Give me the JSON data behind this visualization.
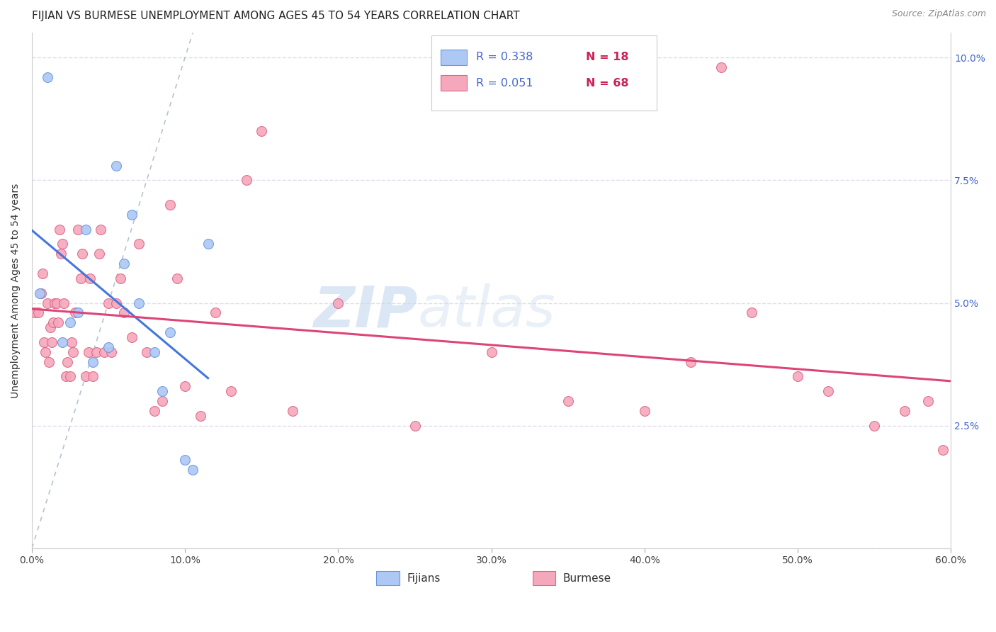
{
  "title": "FIJIAN VS BURMESE UNEMPLOYMENT AMONG AGES 45 TO 54 YEARS CORRELATION CHART",
  "source": "Source: ZipAtlas.com",
  "ylabel": "Unemployment Among Ages 45 to 54 years",
  "xlim": [
    0.0,
    0.6
  ],
  "ylim": [
    0.0,
    0.105
  ],
  "xticks": [
    0.0,
    0.1,
    0.2,
    0.3,
    0.4,
    0.5,
    0.6
  ],
  "xticklabels": [
    "0.0%",
    "10.0%",
    "20.0%",
    "30.0%",
    "40.0%",
    "50.0%",
    "60.0%"
  ],
  "yticks": [
    0.0,
    0.025,
    0.05,
    0.075,
    0.1
  ],
  "yticklabels": [
    "",
    "2.5%",
    "5.0%",
    "7.5%",
    "10.0%"
  ],
  "fijian_color": "#adc8f5",
  "burmese_color": "#f5a8bc",
  "fijian_edge_color": "#6699dd",
  "burmese_edge_color": "#dd6688",
  "fijian_R": 0.338,
  "fijian_N": 18,
  "burmese_R": 0.051,
  "burmese_N": 68,
  "r_text_color": "#4466cc",
  "n_text_color": "#cc2255",
  "fijian_line_color": "#4477dd",
  "burmese_line_color": "#dd4477",
  "diagonal_color": "#99aabb",
  "fijian_x": [
    0.005,
    0.01,
    0.02,
    0.025,
    0.03,
    0.035,
    0.04,
    0.05,
    0.055,
    0.06,
    0.065,
    0.07,
    0.08,
    0.085,
    0.09,
    0.1,
    0.105,
    0.115
  ],
  "fijian_y": [
    0.052,
    0.096,
    0.042,
    0.046,
    0.048,
    0.065,
    0.038,
    0.041,
    0.078,
    0.058,
    0.068,
    0.05,
    0.04,
    0.032,
    0.044,
    0.018,
    0.016,
    0.062
  ],
  "burmese_x": [
    0.002,
    0.004,
    0.006,
    0.007,
    0.008,
    0.009,
    0.01,
    0.011,
    0.012,
    0.013,
    0.014,
    0.015,
    0.016,
    0.017,
    0.018,
    0.019,
    0.02,
    0.021,
    0.022,
    0.023,
    0.025,
    0.026,
    0.027,
    0.028,
    0.03,
    0.032,
    0.033,
    0.035,
    0.037,
    0.038,
    0.04,
    0.042,
    0.044,
    0.045,
    0.047,
    0.05,
    0.052,
    0.055,
    0.058,
    0.06,
    0.065,
    0.07,
    0.075,
    0.08,
    0.085,
    0.09,
    0.095,
    0.1,
    0.11,
    0.12,
    0.13,
    0.14,
    0.15,
    0.17,
    0.2,
    0.25,
    0.3,
    0.35,
    0.4,
    0.43,
    0.45,
    0.47,
    0.5,
    0.52,
    0.55,
    0.57,
    0.585,
    0.595
  ],
  "burmese_y": [
    0.048,
    0.048,
    0.052,
    0.056,
    0.042,
    0.04,
    0.05,
    0.038,
    0.045,
    0.042,
    0.046,
    0.05,
    0.05,
    0.046,
    0.065,
    0.06,
    0.062,
    0.05,
    0.035,
    0.038,
    0.035,
    0.042,
    0.04,
    0.048,
    0.065,
    0.055,
    0.06,
    0.035,
    0.04,
    0.055,
    0.035,
    0.04,
    0.06,
    0.065,
    0.04,
    0.05,
    0.04,
    0.05,
    0.055,
    0.048,
    0.043,
    0.062,
    0.04,
    0.028,
    0.03,
    0.07,
    0.055,
    0.033,
    0.027,
    0.048,
    0.032,
    0.075,
    0.085,
    0.028,
    0.05,
    0.025,
    0.04,
    0.03,
    0.028,
    0.038,
    0.098,
    0.048,
    0.035,
    0.032,
    0.025,
    0.028,
    0.03,
    0.02
  ],
  "watermark_zip": "ZIP",
  "watermark_atlas": "atlas",
  "background_color": "#ffffff",
  "grid_color": "#ddddee",
  "title_fontsize": 11,
  "axis_label_fontsize": 10,
  "tick_fontsize": 10,
  "marker_size": 100
}
